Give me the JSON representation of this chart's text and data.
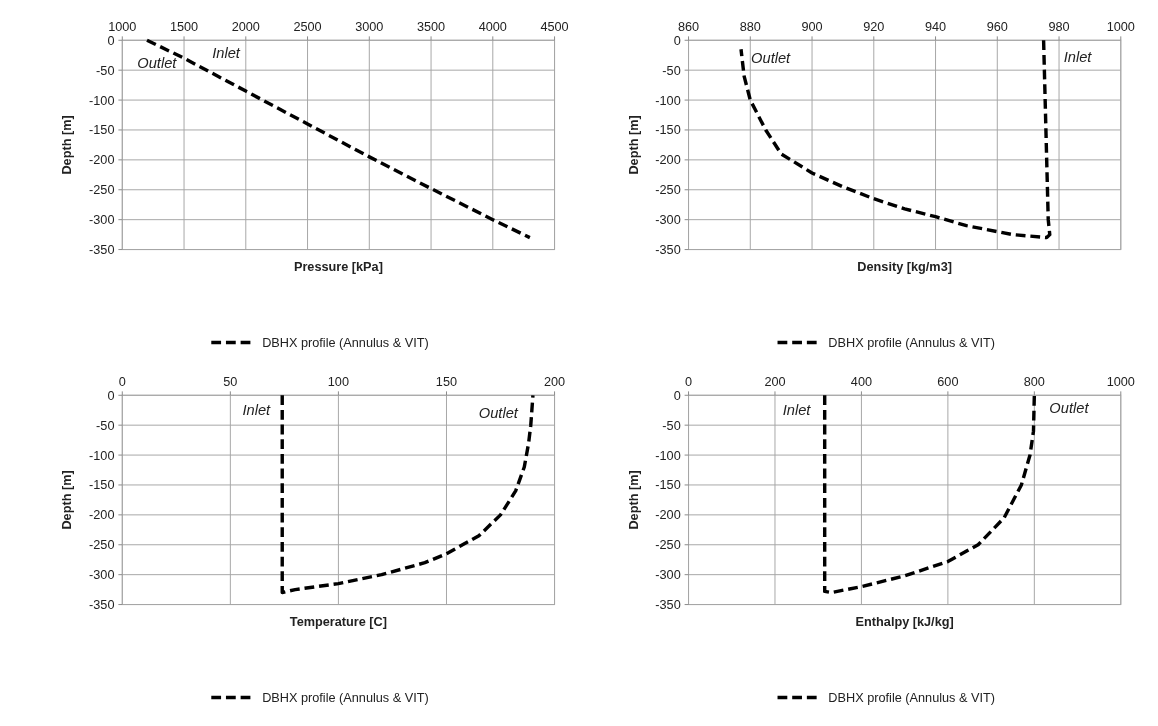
{
  "chart_data": [
    {
      "type": "line",
      "xlabel": "Pressure [kPa]",
      "ylabel": "Depth [m]",
      "xlim": [
        1000,
        4500
      ],
      "xticks": [
        1000,
        1500,
        2000,
        2500,
        3000,
        3500,
        4000,
        4500
      ],
      "ylim": [
        -350,
        0
      ],
      "yticks": [
        -350,
        -300,
        -250,
        -200,
        -150,
        -100,
        -50,
        0
      ],
      "grid": true,
      "legend": "bottom",
      "line_style": "dashed",
      "annotations": [
        "Outlet",
        "Inlet"
      ],
      "series": [
        {
          "name": "DBHX profile (Annulus & VIT)",
          "color": "#000000",
          "x": [
            1200,
            1300,
            1500,
            2000,
            2500,
            3000,
            3500,
            4000,
            4300
          ],
          "values": [
            0,
            -10,
            -30,
            -85,
            -140,
            -195,
            -248,
            -300,
            -330
          ]
        }
      ]
    },
    {
      "type": "line",
      "xlabel": "Density [kg/m3]",
      "ylabel": "Depth [m]",
      "xlim": [
        860,
        1000
      ],
      "xticks": [
        860,
        880,
        900,
        920,
        940,
        960,
        980,
        1000
      ],
      "ylim": [
        -350,
        0
      ],
      "yticks": [
        -350,
        -300,
        -250,
        -200,
        -150,
        -100,
        -50,
        0
      ],
      "grid": true,
      "legend": "bottom",
      "line_style": "dashed",
      "annotations": [
        "Outlet",
        "Inlet"
      ],
      "series": [
        {
          "name": "DBHX profile (Annulus & VIT)",
          "color": "#000000",
          "x": [
            975,
            975.5,
            976,
            976.5,
            977,
            976,
            965,
            950,
            940,
            930,
            920,
            910,
            900,
            890,
            885,
            880,
            878,
            877
          ],
          "values": [
            0,
            -100,
            -200,
            -300,
            -325,
            -330,
            -325,
            -310,
            -295,
            -282,
            -265,
            -245,
            -222,
            -190,
            -150,
            -100,
            -60,
            -15
          ]
        }
      ]
    },
    {
      "type": "line",
      "xlabel": "Temperature [C]",
      "ylabel": "Depth [m]",
      "xlim": [
        0,
        200
      ],
      "xticks": [
        0,
        50,
        100,
        150,
        200
      ],
      "ylim": [
        -350,
        0
      ],
      "yticks": [
        -350,
        -300,
        -250,
        -200,
        -150,
        -100,
        -50,
        0
      ],
      "grid": true,
      "legend": "bottom",
      "line_style": "dashed",
      "annotations": [
        "Inlet",
        "Outlet"
      ],
      "series": [
        {
          "name": "DBHX profile (Annulus & VIT)",
          "color": "#000000",
          "x": [
            74,
            74,
            74,
            74,
            80,
            100,
            120,
            140,
            150,
            165,
            175,
            182,
            186,
            188,
            189,
            190
          ],
          "values": [
            0,
            -150,
            -310,
            -330,
            -325,
            -315,
            -300,
            -280,
            -265,
            -235,
            -200,
            -160,
            -120,
            -80,
            -50,
            0
          ]
        }
      ]
    },
    {
      "type": "line",
      "xlabel": "Enthalpy  [kJ/kg]",
      "ylabel": "Depth [m]",
      "xlim": [
        0,
        1000
      ],
      "xticks": [
        0,
        200,
        400,
        600,
        800,
        1000
      ],
      "ylim": [
        -350,
        0
      ],
      "yticks": [
        -350,
        -300,
        -250,
        -200,
        -150,
        -100,
        -50,
        0
      ],
      "grid": true,
      "legend": "bottom",
      "line_style": "dashed",
      "annotations": [
        "Inlet",
        "Outlet"
      ],
      "series": [
        {
          "name": "DBHX profile (Annulus & VIT)",
          "color": "#000000",
          "x": [
            315,
            315,
            315,
            330,
            400,
            500,
            600,
            670,
            730,
            770,
            790,
            798,
            800
          ],
          "values": [
            0,
            -200,
            -328,
            -330,
            -320,
            -302,
            -278,
            -250,
            -205,
            -150,
            -100,
            -60,
            0
          ]
        }
      ]
    }
  ]
}
